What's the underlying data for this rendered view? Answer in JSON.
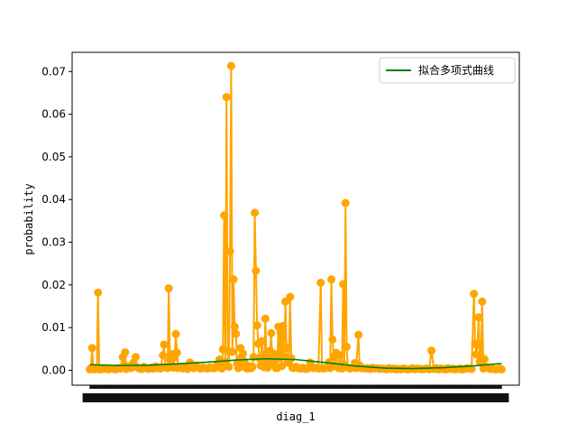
{
  "chart_data": {
    "type": "line",
    "xlabel": "diag_1",
    "ylabel": "probability",
    "ylim": [
      -0.0035,
      0.0745
    ],
    "yticks": [
      "0.00",
      "0.01",
      "0.02",
      "0.03",
      "0.04",
      "0.05",
      "0.06",
      "0.07"
    ],
    "ytick_values": [
      0,
      0.01,
      0.02,
      0.03,
      0.04,
      0.05,
      0.06,
      0.07
    ],
    "x_count": 700,
    "xtick_label_note": "dense overlapping category labels",
    "legend": {
      "entries": [
        "拟合多项式曲线"
      ],
      "placement": "top-right"
    },
    "grid": false,
    "colors": {
      "data": "#ffa500",
      "fit": "#008000",
      "axis": "#000000"
    },
    "series": [
      {
        "kind": "data",
        "color": "#ffa500",
        "points": [
          [
            0,
            0.0002
          ],
          [
            2,
            0.0005
          ],
          [
            4,
            0.0052
          ],
          [
            6,
            0.0004
          ],
          [
            8,
            0.0002
          ],
          [
            10,
            0.0003
          ],
          [
            12,
            0.0004
          ],
          [
            14,
            0.0182
          ],
          [
            16,
            0.0003
          ],
          [
            18,
            0.0002
          ],
          [
            20,
            0.0004
          ],
          [
            24,
            0.0003
          ],
          [
            28,
            0.0005
          ],
          [
            32,
            0.0002
          ],
          [
            36,
            0.0004
          ],
          [
            40,
            0.0003
          ],
          [
            44,
            0.0002
          ],
          [
            48,
            0.0005
          ],
          [
            52,
            0.0004
          ],
          [
            56,
            0.0031
          ],
          [
            58,
            0.0012
          ],
          [
            60,
            0.0042
          ],
          [
            62,
            0.0003
          ],
          [
            66,
            0.0009
          ],
          [
            70,
            0.0005
          ],
          [
            74,
            0.0018
          ],
          [
            78,
            0.0031
          ],
          [
            80,
            0.0007
          ],
          [
            84,
            0.0004
          ],
          [
            88,
            0.0003
          ],
          [
            92,
            0.0008
          ],
          [
            96,
            0.0005
          ],
          [
            100,
            0.0003
          ],
          [
            104,
            0.0006
          ],
          [
            108,
            0.0004
          ],
          [
            112,
            0.0009
          ],
          [
            116,
            0.0005
          ],
          [
            120,
            0.0004
          ],
          [
            124,
            0.0035
          ],
          [
            126,
            0.006
          ],
          [
            128,
            0.0007
          ],
          [
            132,
            0.0005
          ],
          [
            134,
            0.0192
          ],
          [
            136,
            0.0025
          ],
          [
            138,
            0.0032
          ],
          [
            140,
            0.0038
          ],
          [
            142,
            0.0006
          ],
          [
            144,
            0.003
          ],
          [
            146,
            0.0085
          ],
          [
            148,
            0.0041
          ],
          [
            150,
            0.0005
          ],
          [
            154,
            0.0008
          ],
          [
            158,
            0.0004
          ],
          [
            162,
            0.0006
          ],
          [
            166,
            0.0003
          ],
          [
            170,
            0.0018
          ],
          [
            172,
            0.0009
          ],
          [
            176,
            0.0005
          ],
          [
            180,
            0.0011
          ],
          [
            184,
            0.0006
          ],
          [
            188,
            0.0004
          ],
          [
            192,
            0.0006
          ],
          [
            196,
            0.0005
          ],
          [
            200,
            0.0004
          ],
          [
            204,
            0.0007
          ],
          [
            208,
            0.0005
          ],
          [
            212,
            0.0005
          ],
          [
            216,
            0.0012
          ],
          [
            220,
            0.0025
          ],
          [
            224,
            0.0004
          ],
          [
            226,
            0.0049
          ],
          [
            228,
            0.0363
          ],
          [
            230,
            0.002
          ],
          [
            232,
            0.064
          ],
          [
            234,
            0.0046
          ],
          [
            236,
            0.0008
          ],
          [
            238,
            0.0279
          ],
          [
            240,
            0.0713
          ],
          [
            242,
            0.0043
          ],
          [
            244,
            0.0213
          ],
          [
            246,
            0.0102
          ],
          [
            248,
            0.0085
          ],
          [
            250,
            0.0016
          ],
          [
            252,
            0.0005
          ],
          [
            254,
            0.0027
          ],
          [
            256,
            0.0052
          ],
          [
            258,
            0.0009
          ],
          [
            260,
            0.0039
          ],
          [
            262,
            0.0021
          ],
          [
            264,
            0.0007
          ],
          [
            266,
            0.0005
          ],
          [
            268,
            0.0004
          ],
          [
            270,
            0.001
          ],
          [
            272,
            0.0006
          ],
          [
            274,
            0.0005
          ],
          [
            276,
            0.0008
          ],
          [
            278,
            0.0031
          ],
          [
            280,
            0.0369
          ],
          [
            282,
            0.0233
          ],
          [
            284,
            0.0105
          ],
          [
            286,
            0.0062
          ],
          [
            288,
            0.0028
          ],
          [
            290,
            0.0011
          ],
          [
            292,
            0.0068
          ],
          [
            294,
            0.0032
          ],
          [
            296,
            0.0007
          ],
          [
            298,
            0.0121
          ],
          [
            300,
            0.0012
          ],
          [
            302,
            0.0006
          ],
          [
            304,
            0.0031
          ],
          [
            306,
            0.0046
          ],
          [
            308,
            0.0087
          ],
          [
            310,
            0.0015
          ],
          [
            312,
            0.0039
          ],
          [
            314,
            0.002
          ],
          [
            316,
            0.0005
          ],
          [
            318,
            0.0005
          ],
          [
            320,
            0.0102
          ],
          [
            322,
            0.0029
          ],
          [
            324,
            0.0089
          ],
          [
            326,
            0.001
          ],
          [
            328,
            0.0104
          ],
          [
            330,
            0.0032
          ],
          [
            332,
            0.0161
          ],
          [
            334,
            0.0053
          ],
          [
            336,
            0.0018
          ],
          [
            338,
            0.0021
          ],
          [
            340,
            0.0172
          ],
          [
            342,
            0.0028
          ],
          [
            344,
            0.0006
          ],
          [
            346,
            0.0005
          ],
          [
            350,
            0.0008
          ],
          [
            354,
            0.0005
          ],
          [
            358,
            0.0004
          ],
          [
            362,
            0.0006
          ],
          [
            366,
            0.0003
          ],
          [
            370,
            0.0004
          ],
          [
            374,
            0.0018
          ],
          [
            376,
            0.0008
          ],
          [
            380,
            0.0005
          ],
          [
            384,
            0.0006
          ],
          [
            388,
            0.0004
          ],
          [
            392,
            0.0205
          ],
          [
            394,
            0.0005
          ],
          [
            398,
            0.0004
          ],
          [
            402,
            0.0006
          ],
          [
            406,
            0.0019
          ],
          [
            408,
            0.0005
          ],
          [
            410,
            0.0213
          ],
          [
            412,
            0.0072
          ],
          [
            414,
            0.0032
          ],
          [
            416,
            0.0012
          ],
          [
            418,
            0.0041
          ],
          [
            420,
            0.0008
          ],
          [
            422,
            0.0005
          ],
          [
            424,
            0.0035
          ],
          [
            426,
            0.0006
          ],
          [
            428,
            0.0004
          ],
          [
            430,
            0.0202
          ],
          [
            432,
            0.0013
          ],
          [
            434,
            0.0392
          ],
          [
            436,
            0.0055
          ],
          [
            438,
            0.0006
          ],
          [
            442,
            0.0004
          ],
          [
            446,
            0.0006
          ],
          [
            450,
            0.0017
          ],
          [
            452,
            0.0005
          ],
          [
            456,
            0.0083
          ],
          [
            458,
            0.0011
          ],
          [
            460,
            0.0005
          ],
          [
            464,
            0.0005
          ],
          [
            468,
            0.0004
          ],
          [
            472,
            0.0005
          ],
          [
            476,
            0.0003
          ],
          [
            480,
            0.0006
          ],
          [
            484,
            0.0004
          ],
          [
            488,
            0.0005
          ],
          [
            492,
            0.0003
          ],
          [
            496,
            0.0004
          ],
          [
            500,
            0.0003
          ],
          [
            504,
            0.0002
          ],
          [
            508,
            0.0005
          ],
          [
            512,
            0.0003
          ],
          [
            516,
            0.0004
          ],
          [
            520,
            0.0002
          ],
          [
            524,
            0.0003
          ],
          [
            528,
            0.0002
          ],
          [
            532,
            0.0004
          ],
          [
            536,
            0.0003
          ],
          [
            540,
            0.0002
          ],
          [
            544,
            0.0003
          ],
          [
            548,
            0.0005
          ],
          [
            552,
            0.0002
          ],
          [
            556,
            0.0004
          ],
          [
            560,
            0.0003
          ],
          [
            564,
            0.0002
          ],
          [
            568,
            0.0003
          ],
          [
            572,
            0.0004
          ],
          [
            576,
            0.0002
          ],
          [
            580,
            0.0046
          ],
          [
            584,
            0.0003
          ],
          [
            588,
            0.0005
          ],
          [
            592,
            0.0002
          ],
          [
            596,
            0.0004
          ],
          [
            600,
            0.0003
          ],
          [
            604,
            0.0002
          ],
          [
            608,
            0.0005
          ],
          [
            612,
            0.0003
          ],
          [
            616,
            0.0004
          ],
          [
            620,
            0.0002
          ],
          [
            624,
            0.0003
          ],
          [
            628,
            0.0004
          ],
          [
            632,
            0.0002
          ],
          [
            636,
            0.0003
          ],
          [
            640,
            0.0005
          ],
          [
            644,
            0.0004
          ],
          [
            648,
            0.0003
          ],
          [
            652,
            0.0179
          ],
          [
            654,
            0.0062
          ],
          [
            656,
            0.0037
          ],
          [
            658,
            0.0059
          ],
          [
            660,
            0.0124
          ],
          [
            662,
            0.002
          ],
          [
            664,
            0.0031
          ],
          [
            666,
            0.0161
          ],
          [
            668,
            0.0004
          ],
          [
            670,
            0.0026
          ],
          [
            672,
            0.0008
          ],
          [
            676,
            0.0005
          ],
          [
            680,
            0.0003
          ],
          [
            684,
            0.0004
          ],
          [
            688,
            0.0002
          ],
          [
            692,
            0.0003
          ],
          [
            696,
            0.0004
          ],
          [
            699,
            0.0002
          ]
        ]
      },
      {
        "kind": "fit",
        "name": "拟合多项式曲线",
        "color": "#008000",
        "points": [
          [
            0,
            0.0013
          ],
          [
            50,
            0.0011
          ],
          [
            100,
            0.0012
          ],
          [
            150,
            0.0015
          ],
          [
            200,
            0.0019
          ],
          [
            250,
            0.0024
          ],
          [
            300,
            0.0027
          ],
          [
            350,
            0.0025
          ],
          [
            400,
            0.0018
          ],
          [
            450,
            0.001
          ],
          [
            500,
            0.0005
          ],
          [
            550,
            0.0004
          ],
          [
            600,
            0.0006
          ],
          [
            650,
            0.001
          ],
          [
            699,
            0.0016
          ]
        ]
      }
    ]
  }
}
